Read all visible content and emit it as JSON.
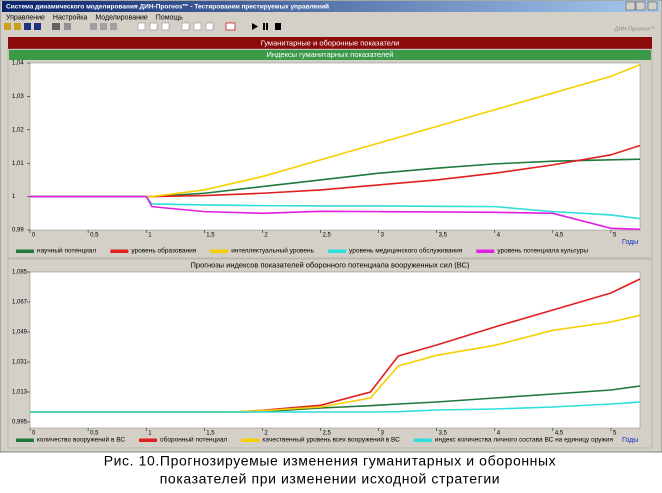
{
  "window": {
    "title": "Система динамического моделирования ДИН-Прогноз™ - Тестировании престируемых управлений",
    "menu": [
      "Управление",
      "Настройка",
      "Моделирование",
      "Помощь"
    ],
    "brand": "ДИН-Прогноз™",
    "banner": "Гуманитарные и оборонные показатели"
  },
  "chart_data": [
    {
      "type": "line",
      "title": "Индексы гуманитарных показателей",
      "x_label": "Годы",
      "x": [
        0,
        0.5,
        1,
        1.05,
        1.5,
        2,
        2.5,
        3,
        3.5,
        4,
        4.5,
        5,
        5.25
      ],
      "xlim": [
        0,
        5.25
      ],
      "xticks": [
        0,
        {
          "value": 0.5,
          "label": "0,5"
        },
        1,
        {
          "value": 1.5,
          "label": "1,5"
        },
        2,
        {
          "value": 2.5,
          "label": "2,5"
        },
        3,
        {
          "value": 3.5,
          "label": "3,5"
        },
        4,
        {
          "value": 4.5,
          "label": "4,5"
        },
        5
      ],
      "ylim": [
        0.99,
        1.04
      ],
      "yticks": [
        {
          "value": 0.99,
          "label": "0,99"
        },
        1,
        {
          "value": 1.01,
          "label": "1,01"
        },
        {
          "value": 1.02,
          "label": "1,02"
        },
        {
          "value": 1.03,
          "label": "1,03"
        },
        {
          "value": 1.04,
          "label": "1,04"
        }
      ],
      "legend": "bottom",
      "series": [
        {
          "name": "научный потенциал",
          "color": "#1f7a3c",
          "values": [
            1,
            1,
            1,
            1,
            1.001,
            1.003,
            1.005,
            1.007,
            1.0085,
            1.0098,
            1.0106,
            1.011,
            1.0112
          ]
        },
        {
          "name": "уровень образования",
          "color": "#e02020",
          "values": [
            1,
            1,
            1,
            1,
            1.0003,
            1.001,
            1.002,
            1.0035,
            1.005,
            1.007,
            1.0095,
            1.0125,
            1.0153
          ]
        },
        {
          "name": "интеллектуальный уровень",
          "color": "#f5d000",
          "values": [
            1,
            1,
            1,
            1,
            1.002,
            1.006,
            1.011,
            1.016,
            1.021,
            1.026,
            1.031,
            1.036,
            1.0395
          ]
        },
        {
          "name": "уровень медицинского обслуживания",
          "color": "#30dcdc",
          "values": [
            1,
            1,
            1,
            0.9978,
            0.9975,
            0.9973,
            0.9972,
            0.9972,
            0.9971,
            0.997,
            0.9955,
            0.9945,
            0.9934
          ]
        },
        {
          "name": "уровень потенциала культуры",
          "color": "#e020e0",
          "values": [
            1,
            1,
            1,
            0.997,
            0.9955,
            0.995,
            0.9956,
            0.9955,
            0.9954,
            0.9953,
            0.995,
            0.9905,
            0.9902
          ]
        }
      ]
    },
    {
      "type": "line",
      "title": "Прогнозы индексов показателей оборонного потенциала вооруженных сил (ВС)",
      "x_label": "Годы",
      "x": [
        0,
        0.5,
        1,
        1.5,
        1.8,
        2,
        2.5,
        2.93,
        3.17,
        3.5,
        4,
        4.5,
        5,
        5.25
      ],
      "xlim": [
        0,
        5.25
      ],
      "xticks": [
        0,
        {
          "value": 0.5,
          "label": "0,5"
        },
        1,
        {
          "value": 1.5,
          "label": "1,5"
        },
        2,
        {
          "value": 2.5,
          "label": "2,5"
        },
        3,
        {
          "value": 3.5,
          "label": "3,5"
        },
        4,
        {
          "value": 4.5,
          "label": "4,5"
        },
        5
      ],
      "ylim": [
        0.9914,
        1.085
      ],
      "yticks": [
        {
          "value": 0.995,
          "label": "0,995"
        },
        {
          "value": 1.013,
          "label": "1,013"
        },
        {
          "value": 1.031,
          "label": "1,031"
        },
        {
          "value": 1.049,
          "label": "1,049"
        },
        {
          "value": 1.067,
          "label": "1,067"
        },
        {
          "value": 1.085,
          "label": "1,085"
        }
      ],
      "legend": "bottom",
      "series": [
        {
          "name": "количество вооружений в ВС",
          "color": "#1f7a3c",
          "values": [
            1.001,
            1.001,
            1.001,
            1.001,
            1.001,
            1.0012,
            1.0034,
            1.0048,
            1.0058,
            1.007,
            1.0094,
            1.0118,
            1.0142,
            1.0166
          ]
        },
        {
          "name": "оборонный потенциал",
          "color": "#e02020",
          "values": [
            1.001,
            1.001,
            1.001,
            1.001,
            1.0012,
            1.002,
            1.005,
            1.013,
            1.0346,
            1.0412,
            1.052,
            1.0622,
            1.0724,
            1.0808
          ]
        },
        {
          "name": "качественный уровень всех вооружений в ВС",
          "color": "#f5d000",
          "values": [
            1.001,
            1.001,
            1.001,
            1.001,
            1.0012,
            1.0018,
            1.004,
            1.0094,
            1.0286,
            1.035,
            1.041,
            1.05,
            1.055,
            1.059
          ]
        },
        {
          "name": "индекс количества личного состава ВС на единицу оружия",
          "color": "#30dcdc",
          "values": [
            1.001,
            1.001,
            1.001,
            1.001,
            1.001,
            1.001,
            1.001,
            1.001,
            1.0012,
            1.0022,
            1.0028,
            1.004,
            1.0058,
            1.007
          ]
        }
      ]
    }
  ],
  "caption": {
    "lines": [
      "Рис. 10.Прогнозируемые изменения гуманитарных и оборонных",
      "показателей при изменении исходной стратегии"
    ]
  }
}
